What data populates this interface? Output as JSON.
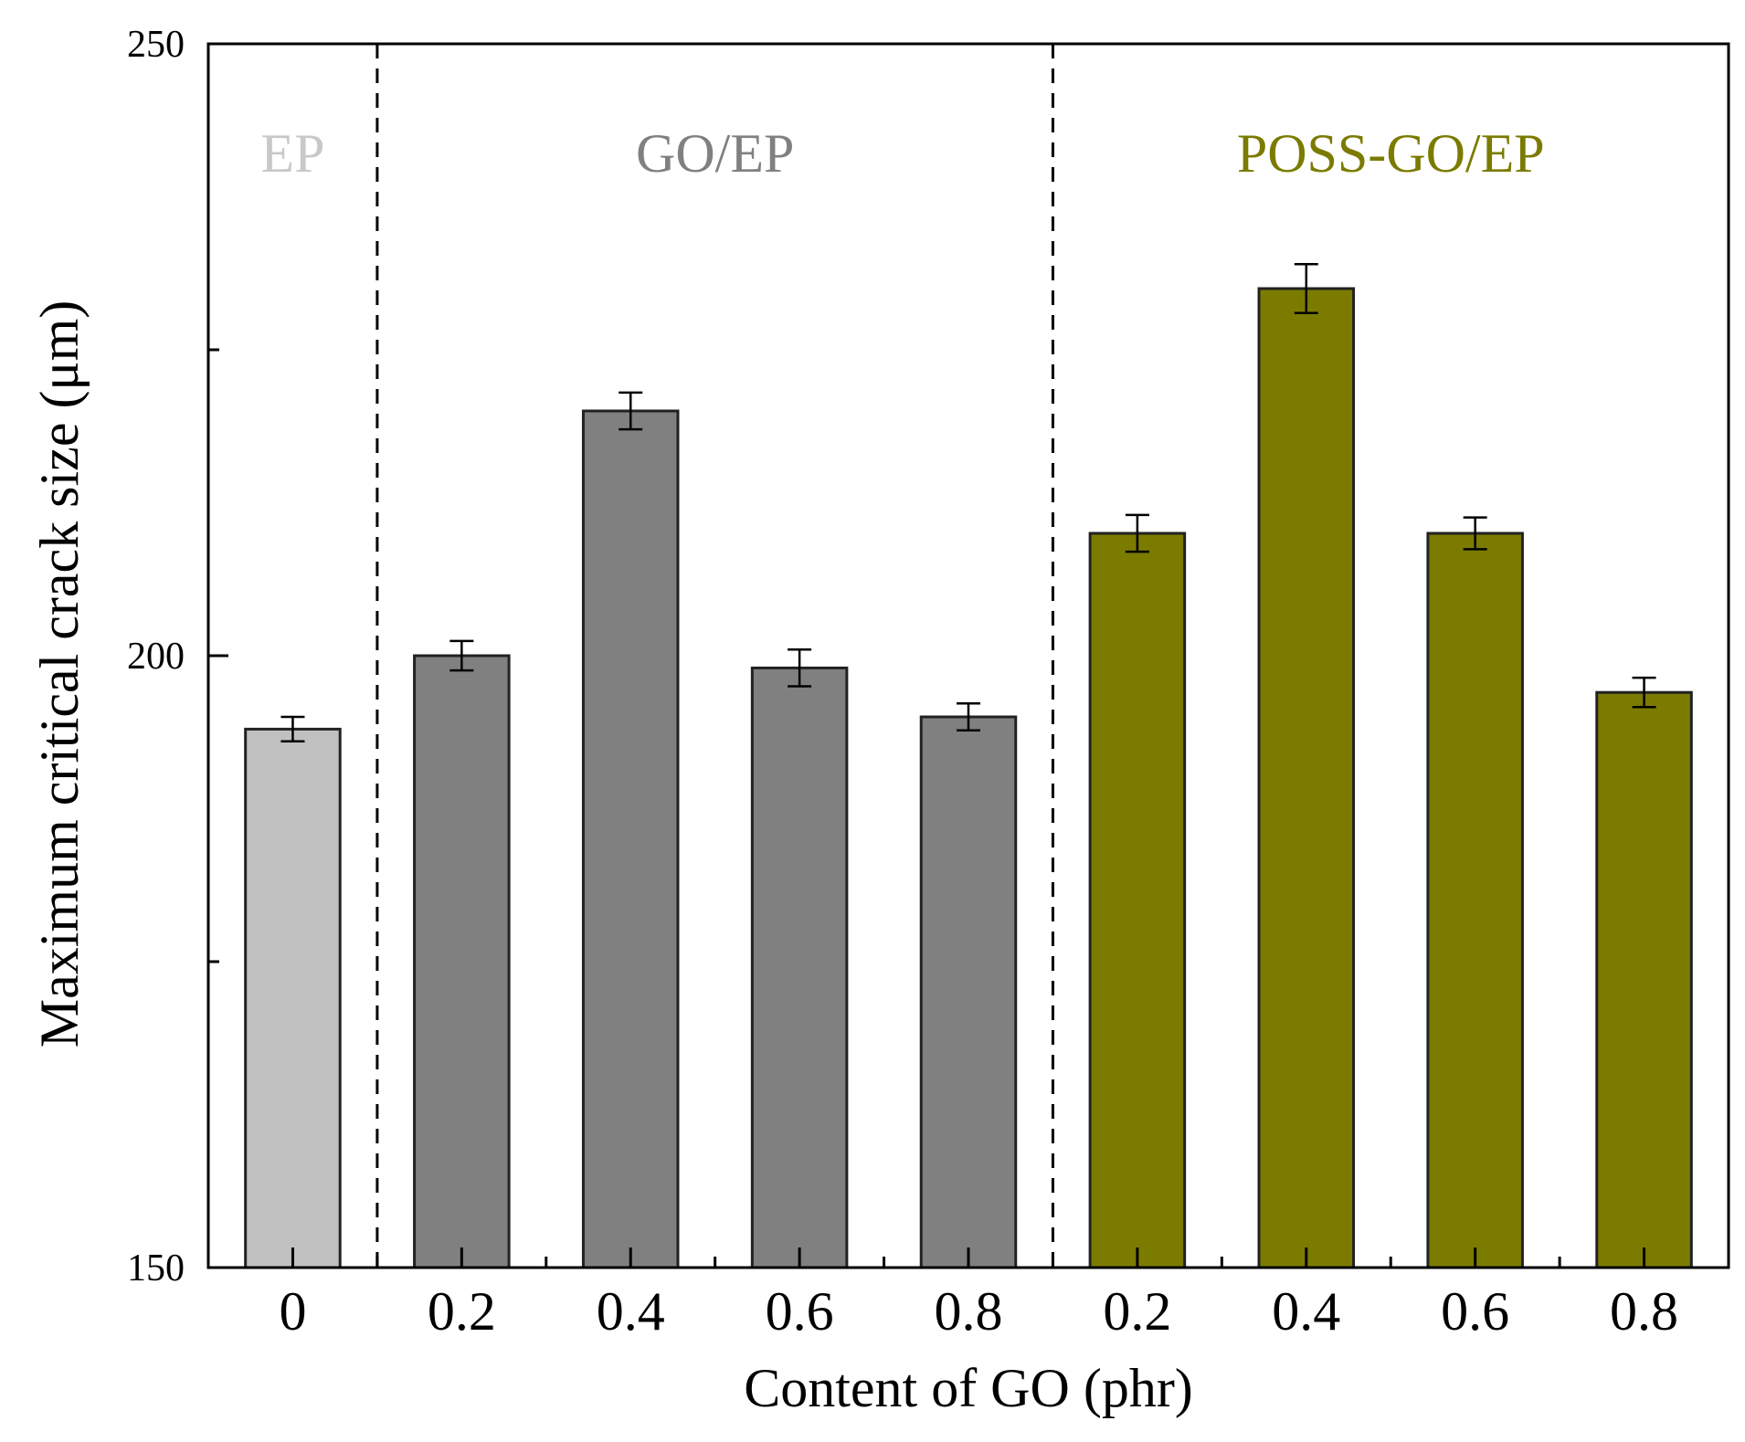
{
  "chart_data": {
    "type": "bar",
    "title": "",
    "xlabel": "Content of GO (phr)",
    "ylabel": "Maximum critical crack size (μm)",
    "ylim": [
      150,
      250
    ],
    "yticks": [
      150,
      200,
      250
    ],
    "yticks_minor": [
      175,
      225
    ],
    "categories": [
      "0",
      "0.2",
      "0.4",
      "0.6",
      "0.8",
      "0.2",
      "0.4",
      "0.6",
      "0.8"
    ],
    "values": [
      194.0,
      200.0,
      220.0,
      199.0,
      195.0,
      210.0,
      230.0,
      210.0,
      197.0
    ],
    "errors": [
      1.0,
      1.2,
      1.5,
      1.5,
      1.1,
      1.5,
      2.0,
      1.3,
      1.2
    ],
    "bar_colors": [
      "#c0c0c0",
      "#808080",
      "#808080",
      "#808080",
      "#808080",
      "#7b7b00",
      "#7b7b00",
      "#7b7b00",
      "#7b7b00"
    ],
    "groups": [
      {
        "name": "EP",
        "color": "#c8c8c8",
        "start": 0,
        "end": 0
      },
      {
        "name": "GO/EP",
        "color": "#808080",
        "start": 1,
        "end": 4
      },
      {
        "name": "POSS-GO/EP",
        "color": "#7b7b00",
        "start": 5,
        "end": 8
      }
    ],
    "separators_after": [
      0,
      4
    ],
    "grid": false
  }
}
